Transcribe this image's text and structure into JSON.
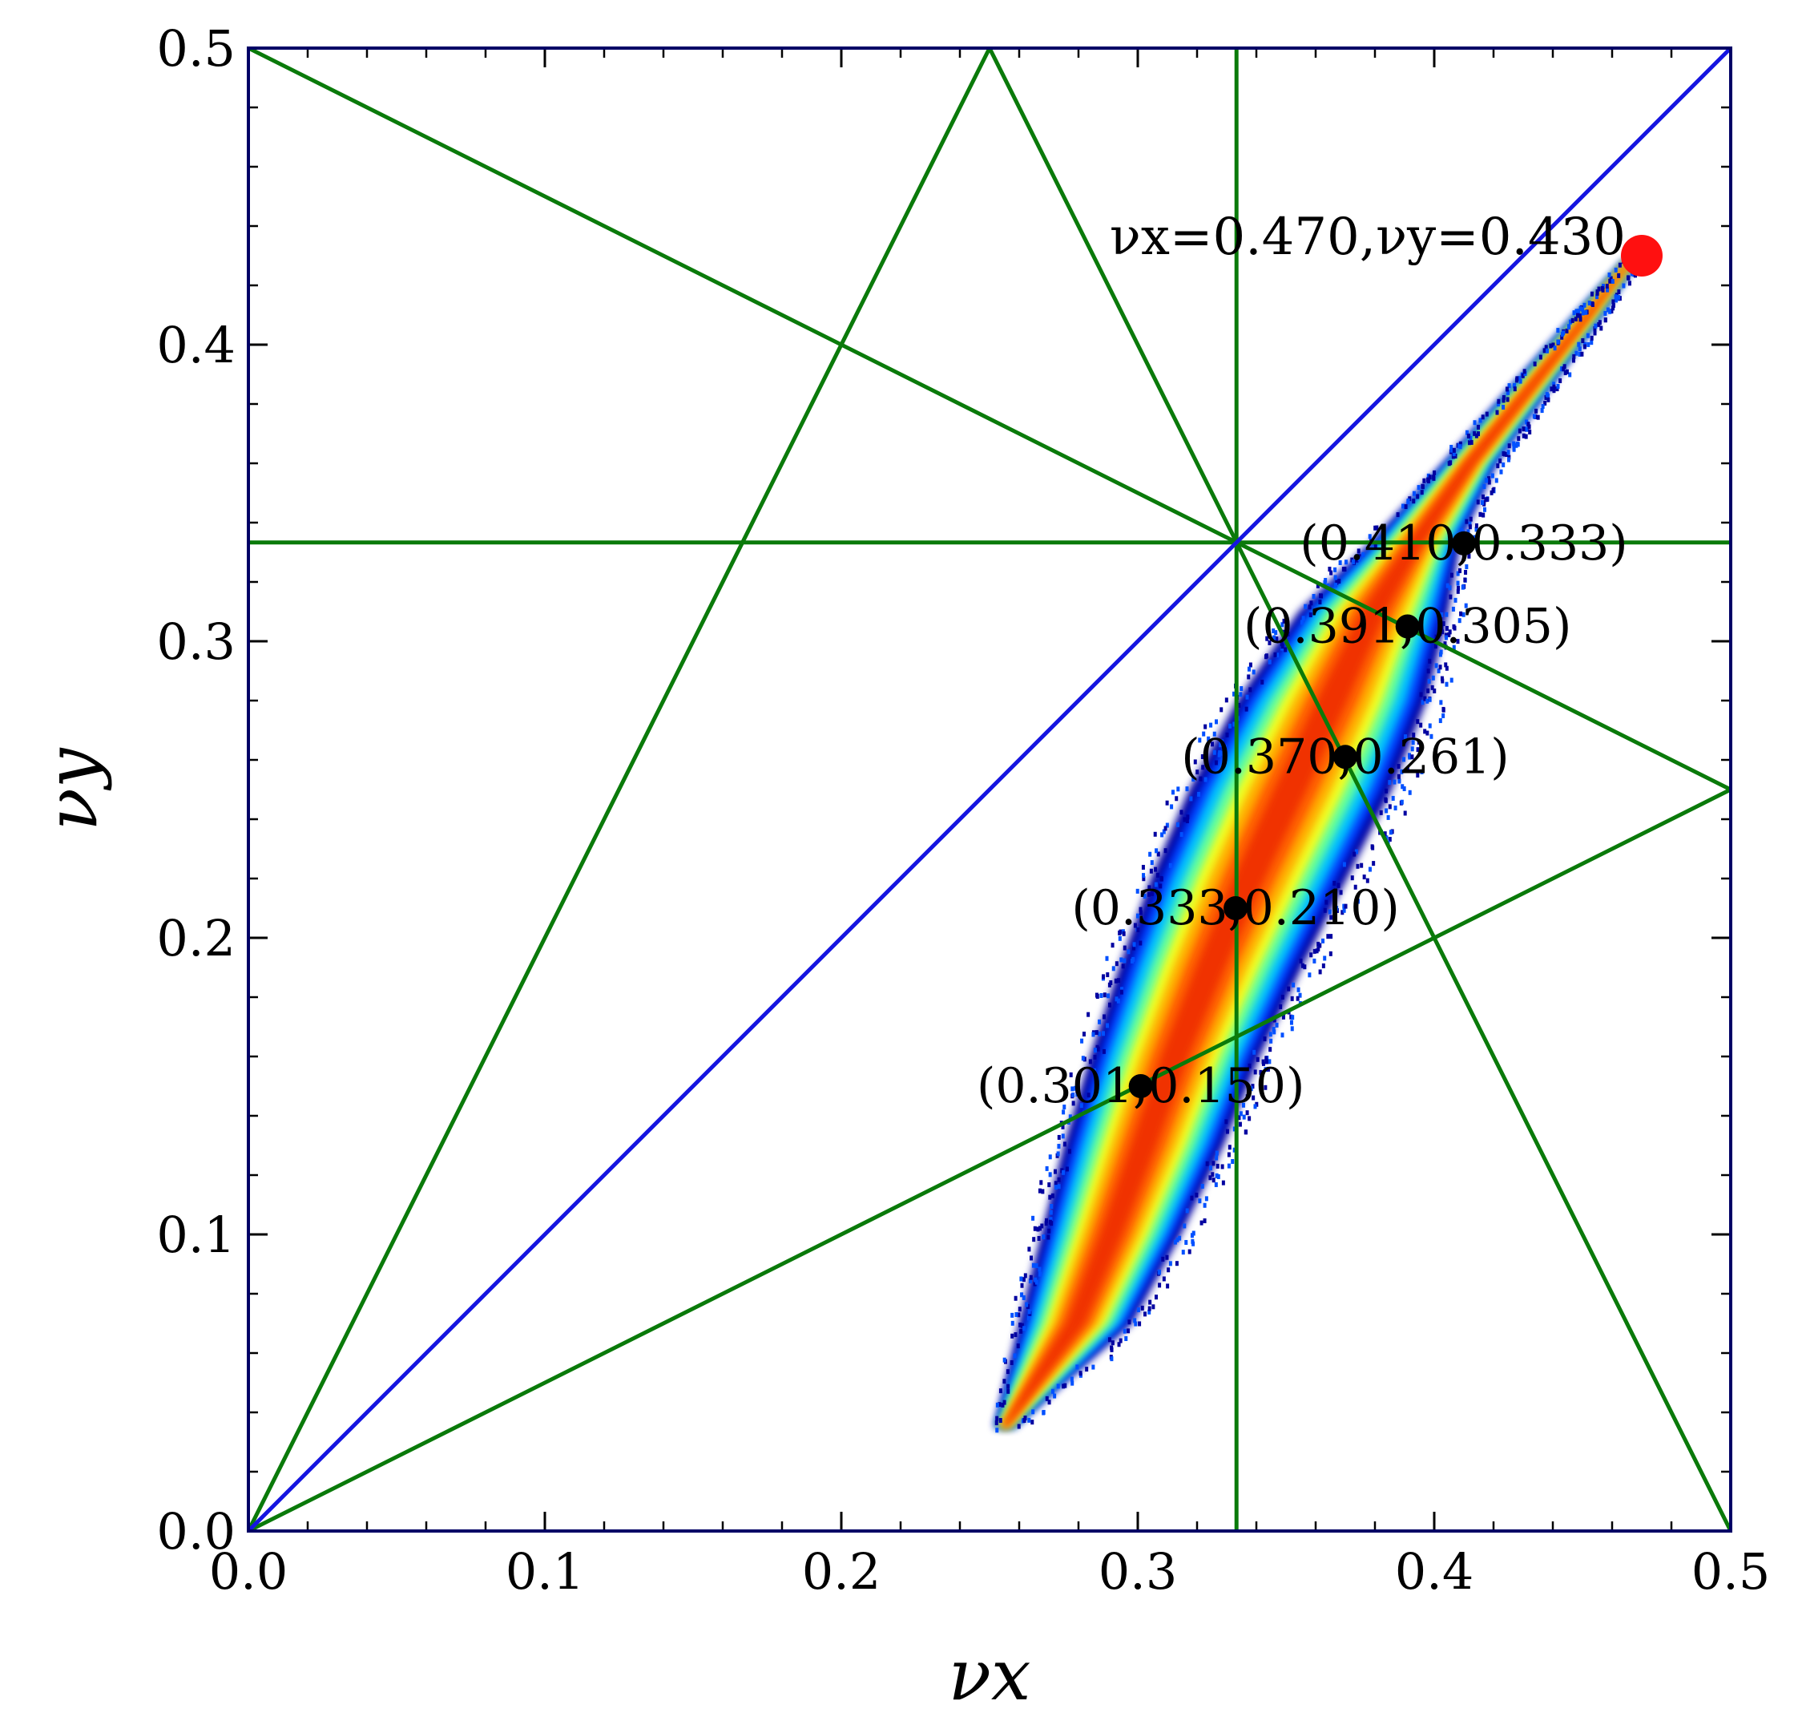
{
  "chart_data": {
    "type": "scatter",
    "title": "",
    "xlabel": "νx",
    "ylabel": "νy",
    "xlim": [
      0.0,
      0.5
    ],
    "ylim": [
      0.0,
      0.5
    ],
    "xticks": [
      "0.0",
      "0.1",
      "0.2",
      "0.3",
      "0.4",
      "0.5"
    ],
    "yticks": [
      "0.0",
      "0.1",
      "0.2",
      "0.3",
      "0.4",
      "0.5"
    ],
    "grid": false,
    "legend": "none",
    "colors": {
      "resonance_lines": "#0a7a0a",
      "diagonal": "#1515e0",
      "frame": "#000066",
      "reference_point": "#ff1010",
      "marked_points": "#000000",
      "density_colormap": [
        "#0000a0",
        "#0040ff",
        "#00c0ff",
        "#60ffa0",
        "#f0ff20",
        "#ffb000",
        "#ff6000",
        "#f03000"
      ]
    },
    "resonance_lines": [
      {
        "x": [
          0.0,
          0.5
        ],
        "y": [
          0.5,
          0.25
        ]
      },
      {
        "x": [
          0.0,
          0.25
        ],
        "y": [
          0.0,
          0.5
        ]
      },
      {
        "x": [
          0.25,
          0.5
        ],
        "y": [
          0.5,
          0.0
        ]
      },
      {
        "x": [
          0.0,
          0.5
        ],
        "y": [
          0.0,
          0.25
        ]
      },
      {
        "x": [
          0.3333,
          0.3333
        ],
        "y": [
          0.0,
          0.5
        ]
      },
      {
        "x": [
          0.0,
          0.5
        ],
        "y": [
          0.3333,
          0.3333
        ]
      }
    ],
    "diagonal_line": {
      "x": [
        0.0,
        0.5
      ],
      "y": [
        0.0,
        0.5
      ]
    },
    "tune_spread": {
      "description": "density of particle tunes",
      "spine": [
        {
          "x": 0.252,
          "y": 0.035,
          "lo": 0.252,
          "hi": 0.258
        },
        {
          "x": 0.27,
          "y": 0.07,
          "lo": 0.262,
          "hi": 0.296
        },
        {
          "x": 0.285,
          "y": 0.1,
          "lo": 0.27,
          "hi": 0.312
        },
        {
          "x": 0.297,
          "y": 0.13,
          "lo": 0.278,
          "hi": 0.326
        },
        {
          "x": 0.308,
          "y": 0.16,
          "lo": 0.287,
          "hi": 0.338
        },
        {
          "x": 0.318,
          "y": 0.19,
          "lo": 0.297,
          "hi": 0.352
        },
        {
          "x": 0.33,
          "y": 0.22,
          "lo": 0.308,
          "hi": 0.367
        },
        {
          "x": 0.342,
          "y": 0.25,
          "lo": 0.321,
          "hi": 0.382
        },
        {
          "x": 0.356,
          "y": 0.28,
          "lo": 0.337,
          "hi": 0.394
        },
        {
          "x": 0.372,
          "y": 0.31,
          "lo": 0.357,
          "hi": 0.402
        },
        {
          "x": 0.391,
          "y": 0.333,
          "lo": 0.38,
          "hi": 0.407
        },
        {
          "x": 0.412,
          "y": 0.36,
          "lo": 0.404,
          "hi": 0.42
        },
        {
          "x": 0.432,
          "y": 0.385,
          "lo": 0.426,
          "hi": 0.438
        },
        {
          "x": 0.452,
          "y": 0.41,
          "lo": 0.448,
          "hi": 0.456
        },
        {
          "x": 0.466,
          "y": 0.428,
          "lo": 0.464,
          "hi": 0.468
        }
      ]
    },
    "reference_point": {
      "x": 0.47,
      "y": 0.43,
      "label": "νx=0.470,νy=0.430"
    },
    "marked_points": [
      {
        "x": 0.41,
        "y": 0.333,
        "label": "(0.410,0.333)"
      },
      {
        "x": 0.391,
        "y": 0.305,
        "label": "(0.391,0.305)"
      },
      {
        "x": 0.37,
        "y": 0.261,
        "label": "(0.370,0.261)"
      },
      {
        "x": 0.333,
        "y": 0.21,
        "label": "(0.333,0.210)"
      },
      {
        "x": 0.301,
        "y": 0.15,
        "label": "(0.301,0.150)"
      }
    ]
  }
}
